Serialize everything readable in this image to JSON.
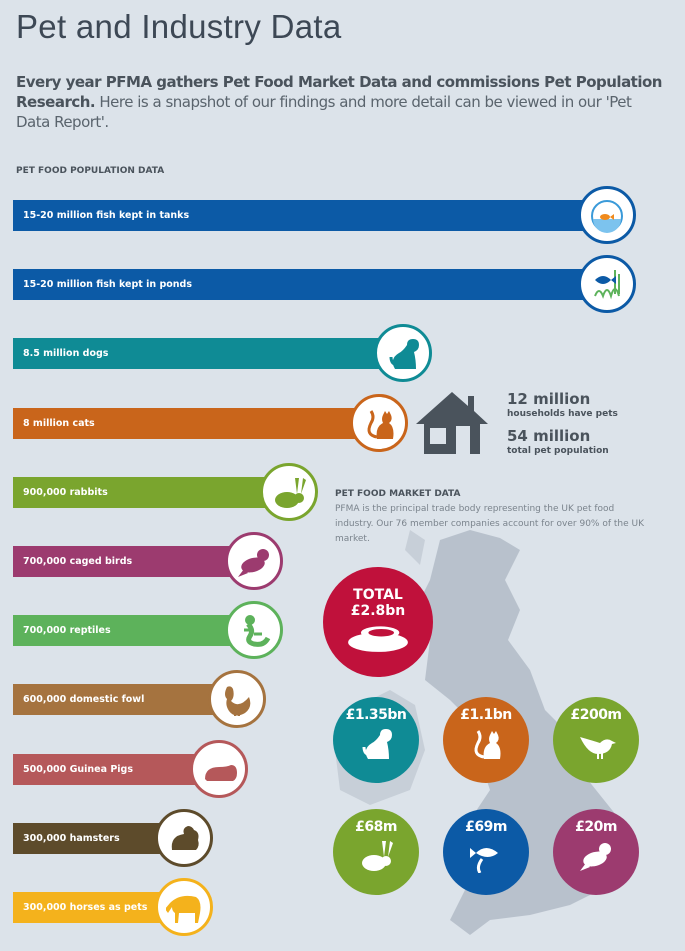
{
  "title": "Pet and Industry Data",
  "intro": {
    "bold": "Every year PFMA gathers Pet Food Market Data and commissions Pet Population Research.",
    "rest": " Here is a snapshot of our findings and more detail can be viewed in our 'Pet Data Report'."
  },
  "population": {
    "heading": "PET FOOD POPULATION DATA",
    "items": [
      {
        "label": "15-20 million fish kept in tanks",
        "icon": "fish-tank-icon",
        "color": "#0c5aa6"
      },
      {
        "label": "15-20 million fish kept in ponds",
        "icon": "pond-fish-icon",
        "color": "#0c5aa6"
      },
      {
        "label": "8.5 million dogs",
        "icon": "dog-icon",
        "color": "#0f8b95"
      },
      {
        "label": "8 million cats",
        "icon": "cat-icon",
        "color": "#c9651b"
      },
      {
        "label": "900,000 rabbits",
        "icon": "rabbit-icon",
        "color": "#7aa52e"
      },
      {
        "label": "700,000 caged birds",
        "icon": "bird-icon",
        "color": "#9c3b6f"
      },
      {
        "label": "700,000 reptiles",
        "icon": "reptile-icon",
        "color": "#5db25b"
      },
      {
        "label": "600,000 domestic fowl",
        "icon": "chicken-icon",
        "color": "#a5733f"
      },
      {
        "label": "500,000 Guinea Pigs",
        "icon": "guinea-pig-icon",
        "color": "#b5585a"
      },
      {
        "label": "300,000 hamsters",
        "icon": "hamster-icon",
        "color": "#5d4b2b"
      },
      {
        "label": "300,000 horses as pets",
        "icon": "horse-icon",
        "color": "#f4b21c"
      }
    ]
  },
  "households": {
    "icon": "house-icon",
    "count1": "12 million",
    "label1": "households have pets",
    "count2": "54 million",
    "label2": "total pet population"
  },
  "market": {
    "heading": "PET FOOD MARKET DATA",
    "text": "PFMA is the principal trade body representing the UK pet food industry. Our 76 member companies account for over 90% of the UK market.",
    "total_label": "TOTAL",
    "total_value": "£2.8bn",
    "total_color": "#c0113b",
    "segments": [
      {
        "value": "£1.35bn",
        "icon": "dog-icon",
        "color": "#0f8b95"
      },
      {
        "value": "£1.1bn",
        "icon": "cat-icon",
        "color": "#c9651b"
      },
      {
        "value": "£200m",
        "icon": "wild-bird-icon",
        "color": "#7aa52e"
      },
      {
        "value": "£68m",
        "icon": "rabbit-icon",
        "color": "#7aa52e"
      },
      {
        "value": "£69m",
        "icon": "fish-icon",
        "color": "#0c5aa6"
      },
      {
        "value": "£20m",
        "icon": "bird-icon",
        "color": "#9c3b6f"
      }
    ]
  }
}
